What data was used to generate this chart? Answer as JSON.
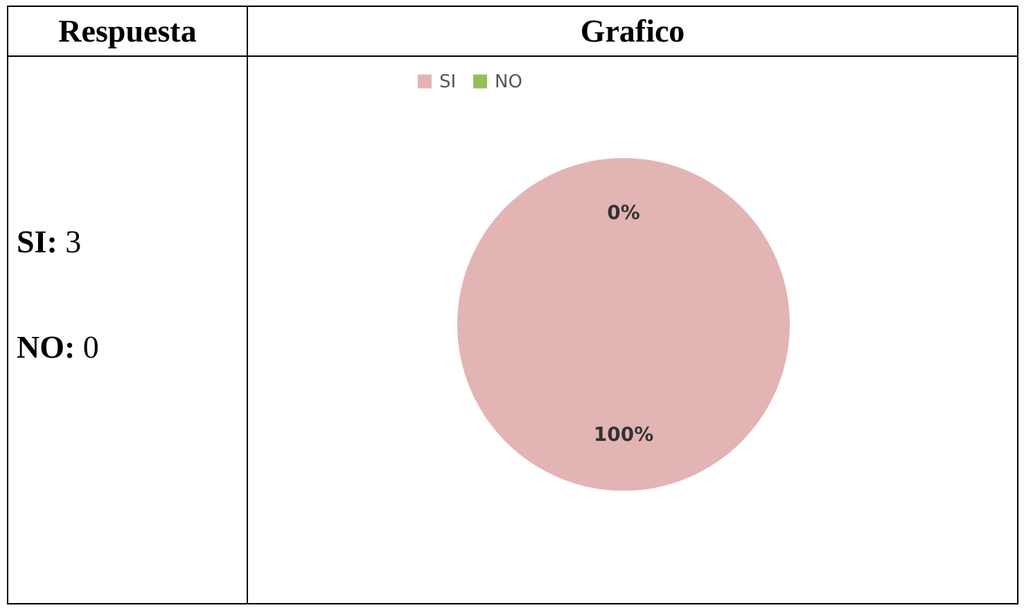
{
  "chart_data": {
    "type": "pie",
    "title": "Grafico",
    "categories": [
      "SI",
      "NO"
    ],
    "values": [
      100,
      0
    ],
    "colors": [
      "#e3b4b4",
      "#9bbb59"
    ],
    "value_labels": [
      "100%",
      "0%"
    ],
    "legend": "top",
    "annotations": [
      "Respuesta",
      "SI: 3",
      "NO: 0"
    ]
  }
}
